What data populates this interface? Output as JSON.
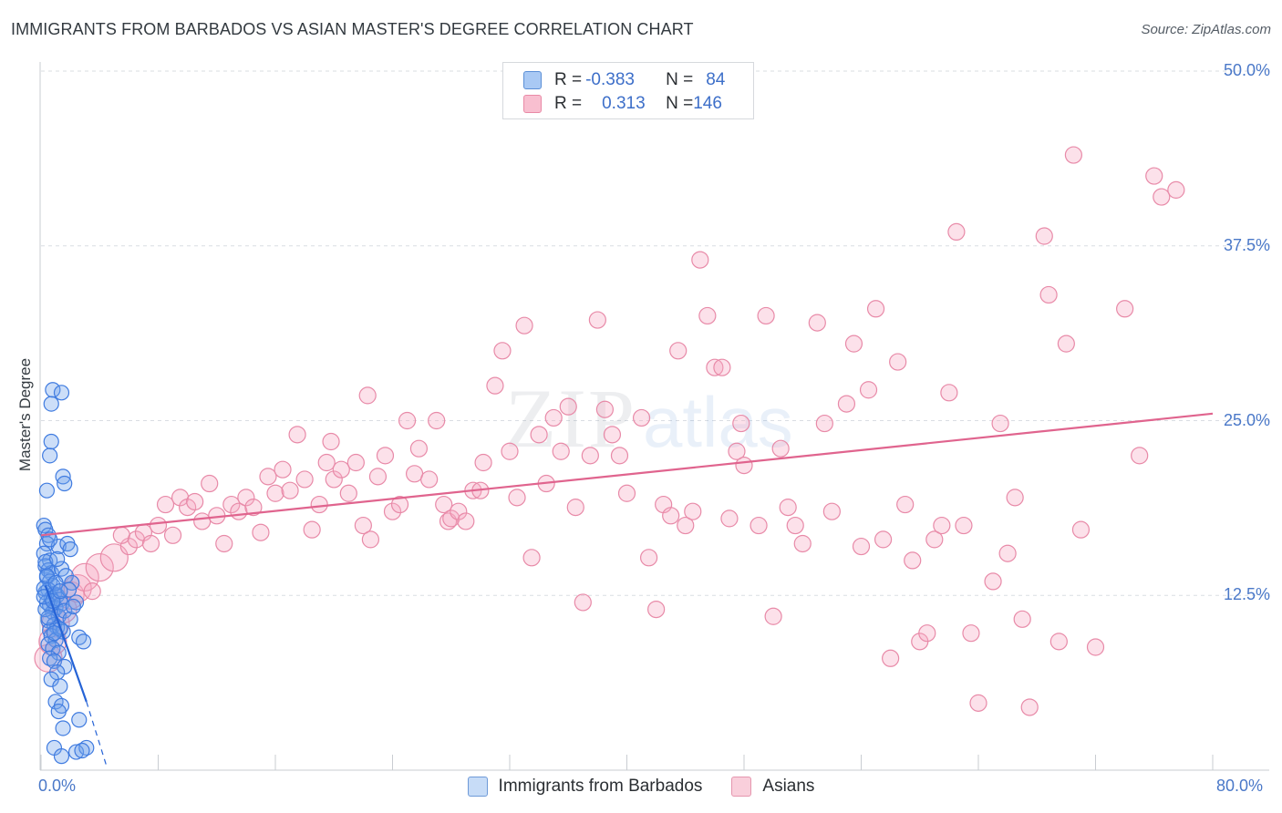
{
  "header": {
    "title": "IMMIGRANTS FROM BARBADOS VS ASIAN MASTER'S DEGREE CORRELATION CHART",
    "source": "Source: ZipAtlas.com"
  },
  "legend_top": {
    "rows": [
      {
        "r_label": "R = ",
        "r_value": "-0.383",
        "n_label": "N = ",
        "n_value": "84",
        "color": "#a9c9f4",
        "border": "#5b8fd6"
      },
      {
        "r_label": "R = ",
        "r_value": "0.313",
        "n_label": "N = ",
        "n_value": "146",
        "color": "#f8bfd0",
        "border": "#e98aa6"
      }
    ]
  },
  "legend_bottom": [
    {
      "label": "Immigrants from Barbados",
      "color": "#c7dcf7",
      "border": "#6e9ad8"
    },
    {
      "label": "Asians",
      "color": "#f9cfdb",
      "border": "#e596ae"
    }
  ],
  "watermark": {
    "zip": "ZIP",
    "atlas": "atlas"
  },
  "colors": {
    "blue_fill": "rgba(110,160,235,0.35)",
    "blue_stroke": "#3f7be0",
    "blue_line": "#2563d6",
    "pink_fill": "rgba(245,170,195,0.35)",
    "pink_stroke": "#e88aa8",
    "pink_line": "#e0648e",
    "grid": "#d9dde2",
    "tick_text": "#4a78c8"
  },
  "chart_data": {
    "type": "scatter",
    "title": "IMMIGRANTS FROM BARBADOS VS ASIAN MASTER'S DEGREE CORRELATION CHART",
    "xlabel": "",
    "ylabel": "Master's Degree",
    "xlim": [
      0,
      80
    ],
    "ylim": [
      0,
      50
    ],
    "x_tick_labels": [
      "0.0%",
      "80.0%"
    ],
    "y_ticks": [
      12.5,
      25.0,
      37.5,
      50.0
    ],
    "y_tick_labels": [
      "12.5%",
      "25.0%",
      "37.5%",
      "50.0%"
    ],
    "grid": true,
    "series": [
      {
        "name": "Immigrants from Barbados",
        "R": -0.383,
        "N": 84,
        "trend": {
          "x0": 0.3,
          "y0": 13.2,
          "x1": 3.1,
          "y1": 4.9,
          "dash_x1": 4.5,
          "dash_y1": 0.2
        },
        "points": [
          [
            0.2,
            17.5
          ],
          [
            0.3,
            17.2
          ],
          [
            0.5,
            16.8
          ],
          [
            0.4,
            16.2
          ],
          [
            0.2,
            15.5
          ],
          [
            0.6,
            15.0
          ],
          [
            0.3,
            14.6
          ],
          [
            0.5,
            14.3
          ],
          [
            0.7,
            14.1
          ],
          [
            0.4,
            13.8
          ],
          [
            0.6,
            13.5
          ],
          [
            0.8,
            13.2
          ],
          [
            0.5,
            12.9
          ],
          [
            0.3,
            12.7
          ],
          [
            0.9,
            12.6
          ],
          [
            1.1,
            12.5
          ],
          [
            0.7,
            12.3
          ],
          [
            1.3,
            12.2
          ],
          [
            0.4,
            12.0
          ],
          [
            0.6,
            11.8
          ],
          [
            1.0,
            11.6
          ],
          [
            1.4,
            11.9
          ],
          [
            0.8,
            11.3
          ],
          [
            1.2,
            11.0
          ],
          [
            0.5,
            10.7
          ],
          [
            0.9,
            10.4
          ],
          [
            1.1,
            10.2
          ],
          [
            0.6,
            10.0
          ],
          [
            1.5,
            9.9
          ],
          [
            0.7,
            9.6
          ],
          [
            1.0,
            9.3
          ],
          [
            0.5,
            9.0
          ],
          [
            0.8,
            8.7
          ],
          [
            1.2,
            8.4
          ],
          [
            0.6,
            8.0
          ],
          [
            0.9,
            7.8
          ],
          [
            1.6,
            7.4
          ],
          [
            1.1,
            7.0
          ],
          [
            0.7,
            6.5
          ],
          [
            1.3,
            6.0
          ],
          [
            0.4,
            20.0
          ],
          [
            0.6,
            22.5
          ],
          [
            0.7,
            23.5
          ],
          [
            1.5,
            21.0
          ],
          [
            1.6,
            20.5
          ],
          [
            0.8,
            27.2
          ],
          [
            1.4,
            27.0
          ],
          [
            0.7,
            26.2
          ],
          [
            1.2,
            16.0
          ],
          [
            1.8,
            16.2
          ],
          [
            2.0,
            15.8
          ],
          [
            1.4,
            14.4
          ],
          [
            1.7,
            13.9
          ],
          [
            2.1,
            13.4
          ],
          [
            1.9,
            12.9
          ],
          [
            2.4,
            12.0
          ],
          [
            1.6,
            11.4
          ],
          [
            2.0,
            10.8
          ],
          [
            1.3,
            10.1
          ],
          [
            2.6,
            9.5
          ],
          [
            2.9,
            9.2
          ],
          [
            1.0,
            4.9
          ],
          [
            1.4,
            4.6
          ],
          [
            1.2,
            4.2
          ],
          [
            1.5,
            3.0
          ],
          [
            2.6,
            3.6
          ],
          [
            0.9,
            1.6
          ],
          [
            1.4,
            1.0
          ],
          [
            2.4,
            1.3
          ],
          [
            3.1,
            1.6
          ],
          [
            2.8,
            1.4
          ],
          [
            0.2,
            13.0
          ],
          [
            0.3,
            11.5
          ],
          [
            0.5,
            10.9
          ],
          [
            0.2,
            12.4
          ],
          [
            0.4,
            13.9
          ],
          [
            0.3,
            14.9
          ],
          [
            0.6,
            16.5
          ],
          [
            0.8,
            12.1
          ],
          [
            1.0,
            13.4
          ],
          [
            1.1,
            15.1
          ],
          [
            1.3,
            12.8
          ],
          [
            2.2,
            11.7
          ],
          [
            0.9,
            9.8
          ]
        ]
      },
      {
        "name": "Asians",
        "R": 0.313,
        "N": 146,
        "trend": {
          "x0": 0,
          "y0": 16.8,
          "x1": 80,
          "y1": 25.5
        },
        "points": [
          [
            0.5,
            8.0
          ],
          [
            0.8,
            9.2
          ],
          [
            1.0,
            10.5
          ],
          [
            1.5,
            11.5
          ],
          [
            2.0,
            12.5
          ],
          [
            2.5,
            13.0
          ],
          [
            3.0,
            13.8
          ],
          [
            4.0,
            14.5
          ],
          [
            5.0,
            15.2
          ],
          [
            6.0,
            16.0
          ],
          [
            5.5,
            16.8
          ],
          [
            6.5,
            16.5
          ],
          [
            7.0,
            17.0
          ],
          [
            7.5,
            16.2
          ],
          [
            8.0,
            17.5
          ],
          [
            9.0,
            16.8
          ],
          [
            8.5,
            19.0
          ],
          [
            9.5,
            19.5
          ],
          [
            10.0,
            18.8
          ],
          [
            10.5,
            19.2
          ],
          [
            11.5,
            20.5
          ],
          [
            11.0,
            17.8
          ],
          [
            12.0,
            18.2
          ],
          [
            12.5,
            16.2
          ],
          [
            13.0,
            19.0
          ],
          [
            13.5,
            18.5
          ],
          [
            14.0,
            19.5
          ],
          [
            14.5,
            18.8
          ],
          [
            15.0,
            17.0
          ],
          [
            15.5,
            21.0
          ],
          [
            16.0,
            19.8
          ],
          [
            16.5,
            21.5
          ],
          [
            17.0,
            20.0
          ],
          [
            17.5,
            24.0
          ],
          [
            18.0,
            20.8
          ],
          [
            18.5,
            17.2
          ],
          [
            19.0,
            19.0
          ],
          [
            19.5,
            22.0
          ],
          [
            19.8,
            23.5
          ],
          [
            20.0,
            20.8
          ],
          [
            20.5,
            21.5
          ],
          [
            21.0,
            19.8
          ],
          [
            21.5,
            22.0
          ],
          [
            22.0,
            17.5
          ],
          [
            22.3,
            26.8
          ],
          [
            22.5,
            16.5
          ],
          [
            23.0,
            21.0
          ],
          [
            23.5,
            22.5
          ],
          [
            24.0,
            18.5
          ],
          [
            24.5,
            19.0
          ],
          [
            25.0,
            25.0
          ],
          [
            25.5,
            21.2
          ],
          [
            25.8,
            23.0
          ],
          [
            26.5,
            20.8
          ],
          [
            27.0,
            25.0
          ],
          [
            27.5,
            19.0
          ],
          [
            27.8,
            17.8
          ],
          [
            28.0,
            18.0
          ],
          [
            28.5,
            18.5
          ],
          [
            29.0,
            17.8
          ],
          [
            29.5,
            20.0
          ],
          [
            30.0,
            20.0
          ],
          [
            30.2,
            22.0
          ],
          [
            31.0,
            27.5
          ],
          [
            31.5,
            30.0
          ],
          [
            32.0,
            22.8
          ],
          [
            32.5,
            19.5
          ],
          [
            33.0,
            31.8
          ],
          [
            33.5,
            15.2
          ],
          [
            34.0,
            24.0
          ],
          [
            34.5,
            20.5
          ],
          [
            35.0,
            25.2
          ],
          [
            35.5,
            22.8
          ],
          [
            36.0,
            26.0
          ],
          [
            36.5,
            18.8
          ],
          [
            37.0,
            12.0
          ],
          [
            37.5,
            22.5
          ],
          [
            38.0,
            32.2
          ],
          [
            38.5,
            25.8
          ],
          [
            39.0,
            24.0
          ],
          [
            39.5,
            22.5
          ],
          [
            40.0,
            19.8
          ],
          [
            41.0,
            25.2
          ],
          [
            41.5,
            15.2
          ],
          [
            42.0,
            11.5
          ],
          [
            42.5,
            19.0
          ],
          [
            43.0,
            18.2
          ],
          [
            43.5,
            30.0
          ],
          [
            44.0,
            17.5
          ],
          [
            44.5,
            18.5
          ],
          [
            45.0,
            36.5
          ],
          [
            45.5,
            32.5
          ],
          [
            46.0,
            28.8
          ],
          [
            46.5,
            28.8
          ],
          [
            47.0,
            18.0
          ],
          [
            47.5,
            22.8
          ],
          [
            47.8,
            24.8
          ],
          [
            48.0,
            21.8
          ],
          [
            49.0,
            17.5
          ],
          [
            49.5,
            32.5
          ],
          [
            50.0,
            11.0
          ],
          [
            50.5,
            23.0
          ],
          [
            51.0,
            18.8
          ],
          [
            51.5,
            17.5
          ],
          [
            52.0,
            16.2
          ],
          [
            53.0,
            32.0
          ],
          [
            53.5,
            24.8
          ],
          [
            54.0,
            18.5
          ],
          [
            55.0,
            26.2
          ],
          [
            55.5,
            30.5
          ],
          [
            56.0,
            16.0
          ],
          [
            56.5,
            27.2
          ],
          [
            57.0,
            33.0
          ],
          [
            57.5,
            16.5
          ],
          [
            58.0,
            8.0
          ],
          [
            58.5,
            29.2
          ],
          [
            59.0,
            19.0
          ],
          [
            59.5,
            15.0
          ],
          [
            60.0,
            9.2
          ],
          [
            60.5,
            9.8
          ],
          [
            61.0,
            16.5
          ],
          [
            61.5,
            17.5
          ],
          [
            62.0,
            27.0
          ],
          [
            62.5,
            38.5
          ],
          [
            63.0,
            17.5
          ],
          [
            63.5,
            9.8
          ],
          [
            64.0,
            4.8
          ],
          [
            65.0,
            13.5
          ],
          [
            65.5,
            24.8
          ],
          [
            66.0,
            15.5
          ],
          [
            66.5,
            19.5
          ],
          [
            67.0,
            10.8
          ],
          [
            67.5,
            4.5
          ],
          [
            68.5,
            38.2
          ],
          [
            68.8,
            34.0
          ],
          [
            69.5,
            9.2
          ],
          [
            70.0,
            30.5
          ],
          [
            70.5,
            44.0
          ],
          [
            71.0,
            17.2
          ],
          [
            72.0,
            8.8
          ],
          [
            74.0,
            33.0
          ],
          [
            75.0,
            22.5
          ],
          [
            76.0,
            42.5
          ],
          [
            76.5,
            41.0
          ],
          [
            77.5,
            41.5
          ],
          [
            3.5,
            12.8
          ]
        ]
      }
    ]
  }
}
